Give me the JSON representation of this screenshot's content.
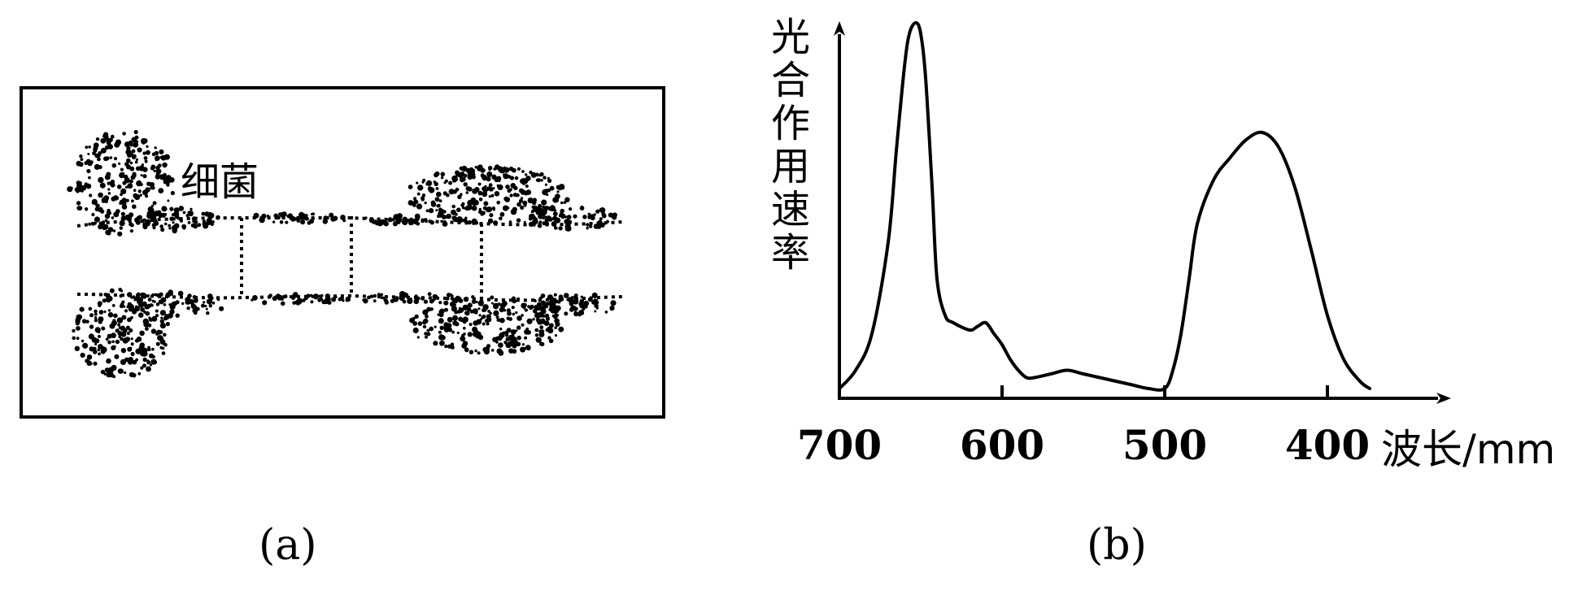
{
  "panel_a": {
    "caption": "(a)",
    "label": "细菌"
  },
  "panel_b": {
    "caption": "(b)",
    "ylabel": "光合作用速率",
    "xlabel": "波长/mm"
  },
  "chart_data": {
    "type": "line",
    "title": "",
    "xlabel": "波长/mm",
    "ylabel": "光合作用速率",
    "x_ticks": [
      "700",
      "600",
      "500",
      "400"
    ],
    "x_reversed": true,
    "xlim": [
      700,
      373
    ],
    "ylim": [
      0,
      1
    ],
    "grid": false,
    "series": [
      {
        "x": [
          700,
          690,
          680,
          670,
          665,
          660,
          657,
          653,
          650,
          647,
          643,
          640,
          635,
          630,
          620,
          615,
          610,
          605,
          600,
          595,
          590,
          585,
          580,
          570,
          560,
          550,
          540,
          530,
          520,
          510,
          500,
          495,
          490,
          485,
          480,
          470,
          460,
          450,
          440,
          430,
          420,
          410,
          400,
          390,
          380,
          374
        ],
        "y": [
          0.0,
          0.05,
          0.15,
          0.4,
          0.65,
          0.88,
          0.97,
          1.0,
          0.97,
          0.85,
          0.55,
          0.3,
          0.2,
          0.18,
          0.16,
          0.17,
          0.18,
          0.15,
          0.12,
          0.08,
          0.05,
          0.03,
          0.03,
          0.04,
          0.05,
          0.04,
          0.03,
          0.02,
          0.01,
          0.0,
          0.0,
          0.05,
          0.15,
          0.3,
          0.45,
          0.57,
          0.63,
          0.68,
          0.7,
          0.66,
          0.55,
          0.38,
          0.2,
          0.08,
          0.02,
          0.0
        ]
      }
    ]
  }
}
